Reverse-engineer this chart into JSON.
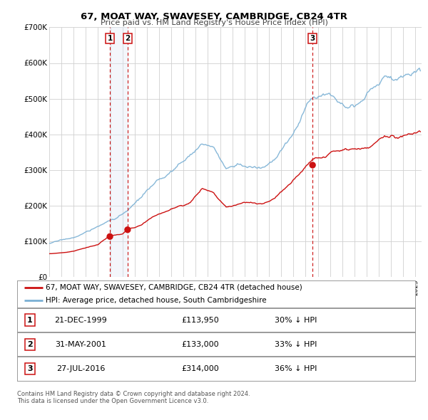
{
  "title": "67, MOAT WAY, SWAVESEY, CAMBRIDGE, CB24 4TR",
  "subtitle": "Price paid vs. HM Land Registry's House Price Index (HPI)",
  "ylim": [
    0,
    700000
  ],
  "yticks": [
    0,
    100000,
    200000,
    300000,
    400000,
    500000,
    600000,
    700000
  ],
  "ytick_labels": [
    "£0",
    "£100K",
    "£200K",
    "£300K",
    "£400K",
    "£500K",
    "£600K",
    "£700K"
  ],
  "xlim_start": 1995.0,
  "xlim_end": 2025.5,
  "hpi_color": "#7ab0d4",
  "price_color": "#cc1111",
  "bg_color": "#ffffff",
  "grid_color": "#d0d0d0",
  "highlight_bg_color": "#dde8f5",
  "legend_label_price": "67, MOAT WAY, SWAVESEY, CAMBRIDGE, CB24 4TR (detached house)",
  "legend_label_hpi": "HPI: Average price, detached house, South Cambridgeshire",
  "transactions": [
    {
      "num": 1,
      "year": 1999.97,
      "price": 113950,
      "label": "21-DEC-1999",
      "price_str": "£113,950",
      "pct": "30% ↓ HPI"
    },
    {
      "num": 2,
      "year": 2001.42,
      "price": 133000,
      "label": "31-MAY-2001",
      "price_str": "£133,000",
      "pct": "33% ↓ HPI"
    },
    {
      "num": 3,
      "year": 2016.57,
      "price": 314000,
      "label": "27-JUL-2016",
      "price_str": "£314,000",
      "pct": "36% ↓ HPI"
    }
  ],
  "footer1": "Contains HM Land Registry data © Crown copyright and database right 2024.",
  "footer2": "This data is licensed under the Open Government Licence v3.0."
}
